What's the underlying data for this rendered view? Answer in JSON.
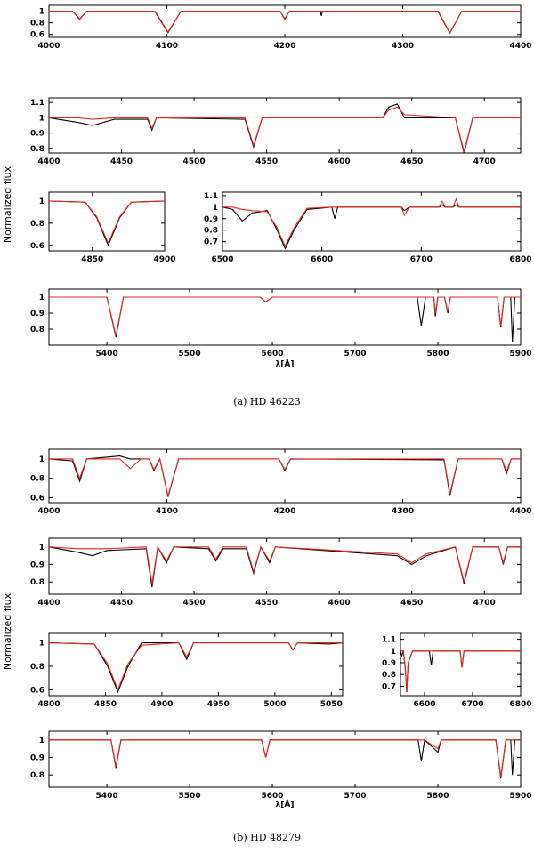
{
  "chart_data": [
    {
      "type": "line",
      "xlim": [
        4000,
        4400
      ],
      "ylim": [
        0.55,
        1.1
      ],
      "xticks": [
        4000,
        4100,
        4200,
        4300,
        4400
      ],
      "yticks": [
        0.6,
        0.8,
        1
      ],
      "x": [
        4000,
        4020,
        4026,
        4032,
        4090,
        4101,
        4112,
        4196,
        4200,
        4204,
        4230,
        4231,
        4232,
        4330,
        4340,
        4350,
        4400
      ],
      "series": [
        {
          "color": "#000000",
          "values": [
            1,
            1,
            0.86,
            1,
            0.99,
            0.63,
            1,
            1,
            0.86,
            1,
            1,
            0.92,
            1,
            0.99,
            0.62,
            1,
            1
          ]
        },
        {
          "color": "#e8261f",
          "values": [
            1,
            1,
            0.87,
            1,
            1,
            0.64,
            1,
            1,
            0.87,
            1,
            1,
            1,
            1,
            1,
            0.63,
            1,
            1
          ]
        }
      ]
    },
    {
      "type": "line",
      "xlim": [
        4400,
        4725
      ],
      "ylim": [
        0.77,
        1.13
      ],
      "xticks": [
        4400,
        4450,
        4500,
        4550,
        4600,
        4650,
        4700
      ],
      "yticks": [
        0.8,
        0.9,
        1,
        1.1
      ],
      "x": [
        4400,
        4420,
        4430,
        4445,
        4468,
        4471,
        4474,
        4535,
        4541,
        4547,
        4630,
        4634,
        4640,
        4645,
        4680,
        4686,
        4692,
        4725
      ],
      "series": [
        {
          "color": "#000000",
          "values": [
            1,
            0.97,
            0.95,
            0.99,
            0.99,
            0.92,
            1,
            0.99,
            0.81,
            1,
            1,
            1.07,
            1.09,
            1,
            1,
            0.77,
            1,
            1
          ]
        },
        {
          "color": "#e8261f",
          "values": [
            1,
            1,
            0.99,
            1,
            1,
            0.93,
            1,
            1,
            0.82,
            1,
            1,
            1.05,
            1.07,
            1.02,
            1,
            0.78,
            1,
            1
          ]
        }
      ]
    },
    {
      "type": "line",
      "xlim": [
        4820,
        4900
      ],
      "ylim": [
        0.55,
        1.08
      ],
      "xticks": [
        4850,
        4900
      ],
      "yticks": [
        0.6,
        0.8,
        1
      ],
      "x": [
        4820,
        4845,
        4853,
        4861,
        4869,
        4877,
        4900
      ],
      "series": [
        {
          "color": "#000000",
          "values": [
            1,
            0.99,
            0.85,
            0.6,
            0.85,
            0.99,
            1
          ]
        },
        {
          "color": "#e8261f",
          "values": [
            1,
            0.99,
            0.86,
            0.62,
            0.86,
            0.99,
            1
          ]
        }
      ]
    },
    {
      "type": "line",
      "xlim": [
        6500,
        6800
      ],
      "ylim": [
        0.62,
        1.13
      ],
      "xticks": [
        6500,
        6600,
        6700,
        6800
      ],
      "yticks": [
        0.7,
        0.8,
        0.9,
        1,
        1.1
      ],
      "x": [
        6500,
        6510,
        6520,
        6530,
        6545,
        6555,
        6563,
        6572,
        6585,
        6610,
        6613,
        6616,
        6680,
        6683,
        6688,
        6718,
        6721,
        6724,
        6732,
        6735,
        6738,
        6800
      ],
      "series": [
        {
          "color": "#000000",
          "values": [
            1,
            0.98,
            0.88,
            0.95,
            0.97,
            0.8,
            0.64,
            0.8,
            0.98,
            1,
            0.9,
            1,
            1,
            0.97,
            1,
            1,
            1.02,
            1,
            1,
            1.02,
            1,
            1
          ]
        },
        {
          "color": "#e8261f",
          "values": [
            1,
            1,
            0.98,
            0.97,
            0.96,
            0.82,
            0.66,
            0.82,
            0.99,
            1,
            1,
            1,
            1,
            0.93,
            1,
            1,
            1.05,
            1,
            1,
            1.07,
            1,
            1
          ]
        }
      ]
    },
    {
      "type": "line",
      "xlim": [
        5330,
        5900
      ],
      "ylim": [
        0.7,
        1.05
      ],
      "xticks": [
        5400,
        5500,
        5600,
        5700,
        5800,
        5900
      ],
      "yticks": [
        0.8,
        0.9,
        1
      ],
      "x": [
        5330,
        5400,
        5411,
        5420,
        5585,
        5592,
        5600,
        5775,
        5780,
        5785,
        5795,
        5797,
        5800,
        5808,
        5812,
        5815,
        5872,
        5876,
        5880,
        5888,
        5890,
        5893,
        5900
      ],
      "series": [
        {
          "color": "#000000",
          "values": [
            1,
            1,
            0.75,
            1,
            1,
            0.97,
            1,
            1,
            0.82,
            1,
            1,
            0.88,
            1,
            1,
            0.9,
            1,
            1,
            0.81,
            1,
            1,
            0.72,
            1,
            1
          ]
        },
        {
          "color": "#e8261f",
          "values": [
            1,
            1,
            0.76,
            1,
            1,
            0.97,
            1,
            1,
            1,
            1,
            1,
            0.9,
            1,
            1,
            0.91,
            1,
            1,
            0.82,
            1,
            1,
            1,
            1,
            1
          ]
        }
      ]
    },
    {
      "type": "line",
      "xlim": [
        4000,
        4400
      ],
      "ylim": [
        0.55,
        1.1
      ],
      "xticks": [
        4000,
        4100,
        4200,
        4300,
        4400
      ],
      "yticks": [
        0.6,
        0.8,
        1
      ],
      "x": [
        4000,
        4020,
        4026,
        4032,
        4060,
        4069,
        4078,
        4085,
        4089,
        4094,
        4101,
        4110,
        4195,
        4200,
        4205,
        4335,
        4340,
        4347,
        4384,
        4388,
        4392,
        4400
      ],
      "series": [
        {
          "color": "#000000",
          "values": [
            1,
            0.98,
            0.77,
            1,
            1.03,
            1,
            1,
            1,
            0.88,
            1,
            0.61,
            1,
            1,
            0.88,
            1,
            0.99,
            0.62,
            1,
            1,
            0.85,
            1,
            1
          ]
        },
        {
          "color": "#e8261f",
          "values": [
            1,
            1,
            0.8,
            1,
            1,
            0.9,
            1,
            1,
            0.89,
            1,
            0.62,
            1,
            1,
            0.89,
            1,
            1,
            0.64,
            1,
            1,
            0.87,
            1,
            1
          ]
        }
      ]
    },
    {
      "type": "line",
      "xlim": [
        4400,
        4725
      ],
      "ylim": [
        0.73,
        1.05
      ],
      "xticks": [
        4400,
        4450,
        4500,
        4550,
        4600,
        4650,
        4700
      ],
      "yticks": [
        0.8,
        0.9,
        1
      ],
      "x": [
        4400,
        4420,
        4430,
        4440,
        4467,
        4471,
        4475,
        4481,
        4486,
        4510,
        4515,
        4520,
        4536,
        4541,
        4546,
        4552,
        4556,
        4640,
        4650,
        4660,
        4680,
        4686,
        4692,
        4710,
        4713,
        4716,
        4725
      ],
      "series": [
        {
          "color": "#000000",
          "values": [
            1,
            0.97,
            0.95,
            0.98,
            0.99,
            0.77,
            1,
            0.91,
            1,
            0.99,
            0.92,
            0.99,
            0.99,
            0.85,
            1,
            0.91,
            1,
            0.95,
            0.9,
            0.95,
            1,
            0.79,
            1,
            1,
            0.9,
            1,
            1
          ]
        },
        {
          "color": "#e8261f",
          "values": [
            1,
            0.99,
            0.99,
            0.99,
            1,
            0.79,
            1,
            0.92,
            1,
            1,
            0.93,
            1,
            1,
            0.86,
            1,
            0.92,
            1,
            0.96,
            0.91,
            0.96,
            1,
            0.8,
            1,
            1,
            0.91,
            1,
            1
          ]
        }
      ]
    },
    {
      "type": "line",
      "xlim": [
        4800,
        5060
      ],
      "ylim": [
        0.55,
        1.08
      ],
      "xticks": [
        4800,
        4850,
        4900,
        4950,
        5000,
        5050
      ],
      "yticks": [
        0.6,
        0.8,
        1
      ],
      "x": [
        4800,
        4840,
        4852,
        4861,
        4870,
        4882,
        4915,
        4922,
        4928,
        5012,
        5016,
        5020,
        5048,
        5060
      ],
      "series": [
        {
          "color": "#000000",
          "values": [
            1,
            0.99,
            0.8,
            0.58,
            0.8,
            1,
            1,
            0.86,
            1,
            1,
            0.94,
            1,
            0.99,
            1
          ]
        },
        {
          "color": "#e8261f",
          "values": [
            1,
            0.99,
            0.82,
            0.6,
            0.82,
            0.98,
            1,
            0.88,
            1,
            1,
            0.94,
            1,
            1,
            1
          ]
        }
      ]
    },
    {
      "type": "line",
      "xlim": [
        6550,
        6800
      ],
      "ylim": [
        0.62,
        1.15
      ],
      "xticks": [
        6600,
        6700,
        6800
      ],
      "yticks": [
        0.7,
        0.8,
        0.9,
        1,
        1.1
      ],
      "x": [
        6550,
        6553,
        6556,
        6560,
        6563,
        6566,
        6575,
        6610,
        6614,
        6618,
        6674,
        6678,
        6682,
        6800
      ],
      "series": [
        {
          "color": "#000000",
          "values": [
            1,
            0.96,
            1,
            0.85,
            0.65,
            0.9,
            1,
            1,
            0.88,
            1,
            1,
            0.86,
            1,
            1
          ]
        },
        {
          "color": "#e8261f",
          "values": [
            1,
            1,
            1,
            0.86,
            0.66,
            0.9,
            1,
            1,
            1,
            1,
            1,
            0.86,
            1,
            1
          ]
        }
      ]
    },
    {
      "type": "line",
      "xlim": [
        5330,
        5900
      ],
      "ylim": [
        0.73,
        1.05
      ],
      "xticks": [
        5400,
        5500,
        5600,
        5700,
        5800,
        5900
      ],
      "yticks": [
        0.8,
        0.9,
        1
      ],
      "x": [
        5330,
        5405,
        5411,
        5417,
        5587,
        5592,
        5597,
        5776,
        5780,
        5784,
        5800,
        5804,
        5870,
        5876,
        5882,
        5888,
        5890,
        5893,
        5900
      ],
      "series": [
        {
          "color": "#000000",
          "values": [
            1,
            1,
            0.84,
            1,
            1,
            0.9,
            1,
            1,
            0.88,
            1,
            0.93,
            1,
            1,
            0.78,
            1,
            1,
            0.8,
            1,
            1
          ]
        },
        {
          "color": "#e8261f",
          "values": [
            1,
            1,
            0.85,
            1,
            1,
            0.9,
            1,
            1,
            1,
            1,
            0.95,
            1,
            1,
            0.79,
            1,
            1,
            1,
            1,
            1
          ]
        }
      ]
    }
  ],
  "figure_groups": [
    {
      "ylabel": "Normalized flux",
      "xlabel": "λ[Å]",
      "caption": "(a) HD 46223"
    },
    {
      "ylabel": "Normalized flux",
      "xlabel": "λ[Å]",
      "caption": "(b) HD 48279"
    }
  ]
}
